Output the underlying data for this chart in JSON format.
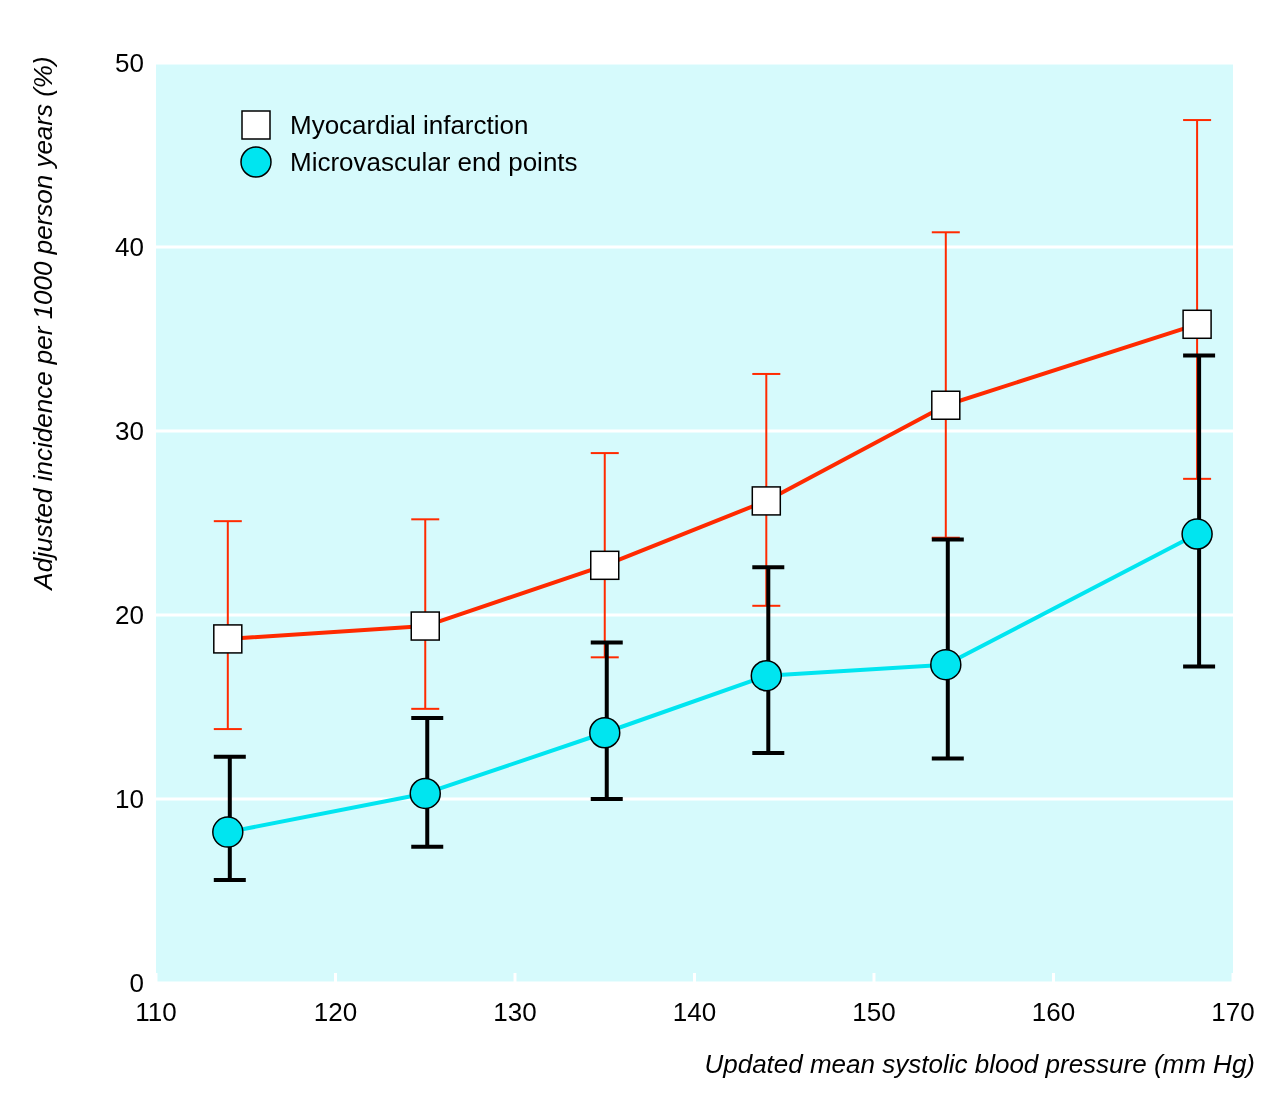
{
  "chart_data": {
    "type": "line",
    "xlabel": "Updated mean systolic blood pressure (mm Hg)",
    "ylabel": "Adjusted incidence per 1000 person years (%)",
    "xlim": [
      110,
      170
    ],
    "xticks": [
      110,
      120,
      130,
      140,
      150,
      160,
      170
    ],
    "ylim": [
      0,
      50
    ],
    "yticks": [
      0,
      10,
      20,
      30,
      40,
      50
    ],
    "grid": "y",
    "legend": "top left",
    "series": [
      {
        "name": "Myocardial infarction",
        "color": "#ff2a00",
        "marker": "square",
        "x": [
          114,
          125,
          135,
          144,
          154,
          168
        ],
        "values": [
          18.7,
          19.4,
          22.7,
          26.2,
          31.4,
          35.8
        ],
        "errors": [
          [
            13.8,
            25.1
          ],
          [
            14.9,
            25.2
          ],
          [
            17.7,
            28.8
          ],
          [
            20.5,
            33.1
          ],
          [
            24.2,
            40.8
          ],
          [
            27.4,
            46.9
          ]
        ]
      },
      {
        "name": "Microvascular end points",
        "color": "#00e5f0",
        "marker": "circle",
        "x": [
          114,
          125,
          135,
          144,
          154,
          168
        ],
        "values": [
          8.2,
          10.3,
          13.6,
          16.7,
          17.3,
          24.4
        ],
        "errors": [
          [
            5.6,
            12.3
          ],
          [
            7.4,
            14.4
          ],
          [
            10.0,
            18.5
          ],
          [
            12.5,
            22.6
          ],
          [
            12.2,
            24.1
          ],
          [
            17.2,
            34.1
          ]
        ]
      }
    ]
  }
}
